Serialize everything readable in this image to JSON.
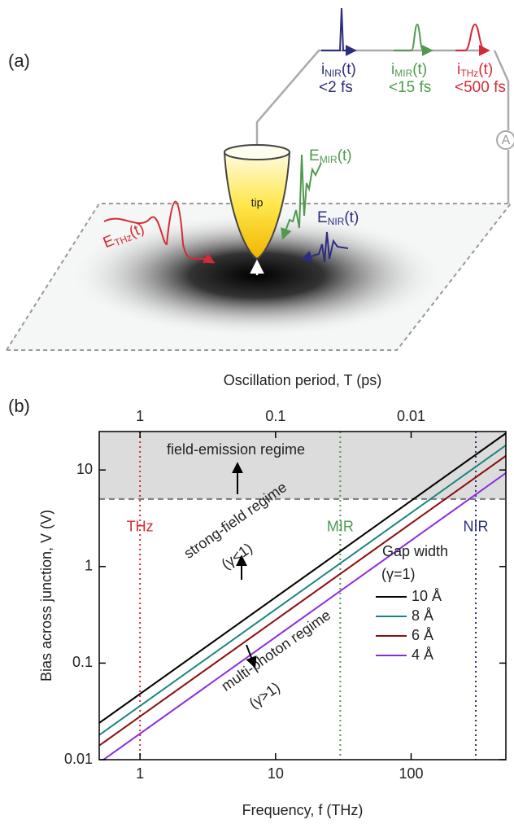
{
  "panel_a": {
    "label": "(a)",
    "tip": "tip",
    "ammeter": "A",
    "currents": [
      {
        "symbol": "i",
        "sub": "NIR",
        "arg": "(t)",
        "duration": "<2 fs",
        "color": "#2d2d80"
      },
      {
        "symbol": "i",
        "sub": "MIR",
        "arg": "(t)",
        "duration": "<15 fs",
        "color": "#4f9a4f"
      },
      {
        "symbol": "i",
        "sub": "THz",
        "arg": "(t)",
        "duration": "<500 fs",
        "color": "#d42a35"
      }
    ],
    "fields": [
      {
        "symbol": "E",
        "sub": "THz",
        "arg": "(t)",
        "color": "#d42a35"
      },
      {
        "symbol": "E",
        "sub": "MIR",
        "arg": "(t)",
        "color": "#4f9a4f"
      },
      {
        "symbol": "E",
        "sub": "NIR",
        "arg": "(t)",
        "color": "#2d2d80"
      }
    ]
  },
  "chart_data": {
    "type": "line",
    "panel_label": "(b)",
    "xlabel": "Frequency, f (THz)",
    "ylabel": "Bias across junction, V (V)",
    "x2label": "Oscillation period, T (ps)",
    "xscale": "log",
    "yscale": "log",
    "xlim": [
      0.5,
      500
    ],
    "ylim": [
      0.01,
      25
    ],
    "xticks": [
      1,
      10,
      100
    ],
    "yticks": [
      0.01,
      0.1,
      1,
      10
    ],
    "x2lim": [
      2,
      0.002
    ],
    "x2ticks": [
      1,
      0.1,
      0.01
    ],
    "x": [
      0.5,
      500
    ],
    "series": [
      {
        "name": "10 Å",
        "color": "#000000",
        "values": [
          0.024,
          24
        ]
      },
      {
        "name": "8 Å",
        "color": "#17857e",
        "values": [
          0.018,
          18
        ]
      },
      {
        "name": "6 Å",
        "color": "#8b1010",
        "values": [
          0.014,
          14
        ]
      },
      {
        "name": "4 Å",
        "color": "#8a2be2",
        "values": [
          0.0093,
          9.3
        ]
      }
    ],
    "legend_title": "Gap width",
    "legend_subtitle": "(γ=1)",
    "vlines": [
      {
        "x": 1,
        "label": "THz",
        "color": "#d42a35"
      },
      {
        "x": 30,
        "label": "MIR",
        "color": "#4f9a4f"
      },
      {
        "x": 300,
        "label": "NIR",
        "color": "#2d2d80"
      }
    ],
    "hline": 5,
    "annotations": [
      "field-emission regime",
      "strong-field regime",
      "(γ<1)",
      "multi-photon regime",
      "(γ>1)"
    ]
  }
}
